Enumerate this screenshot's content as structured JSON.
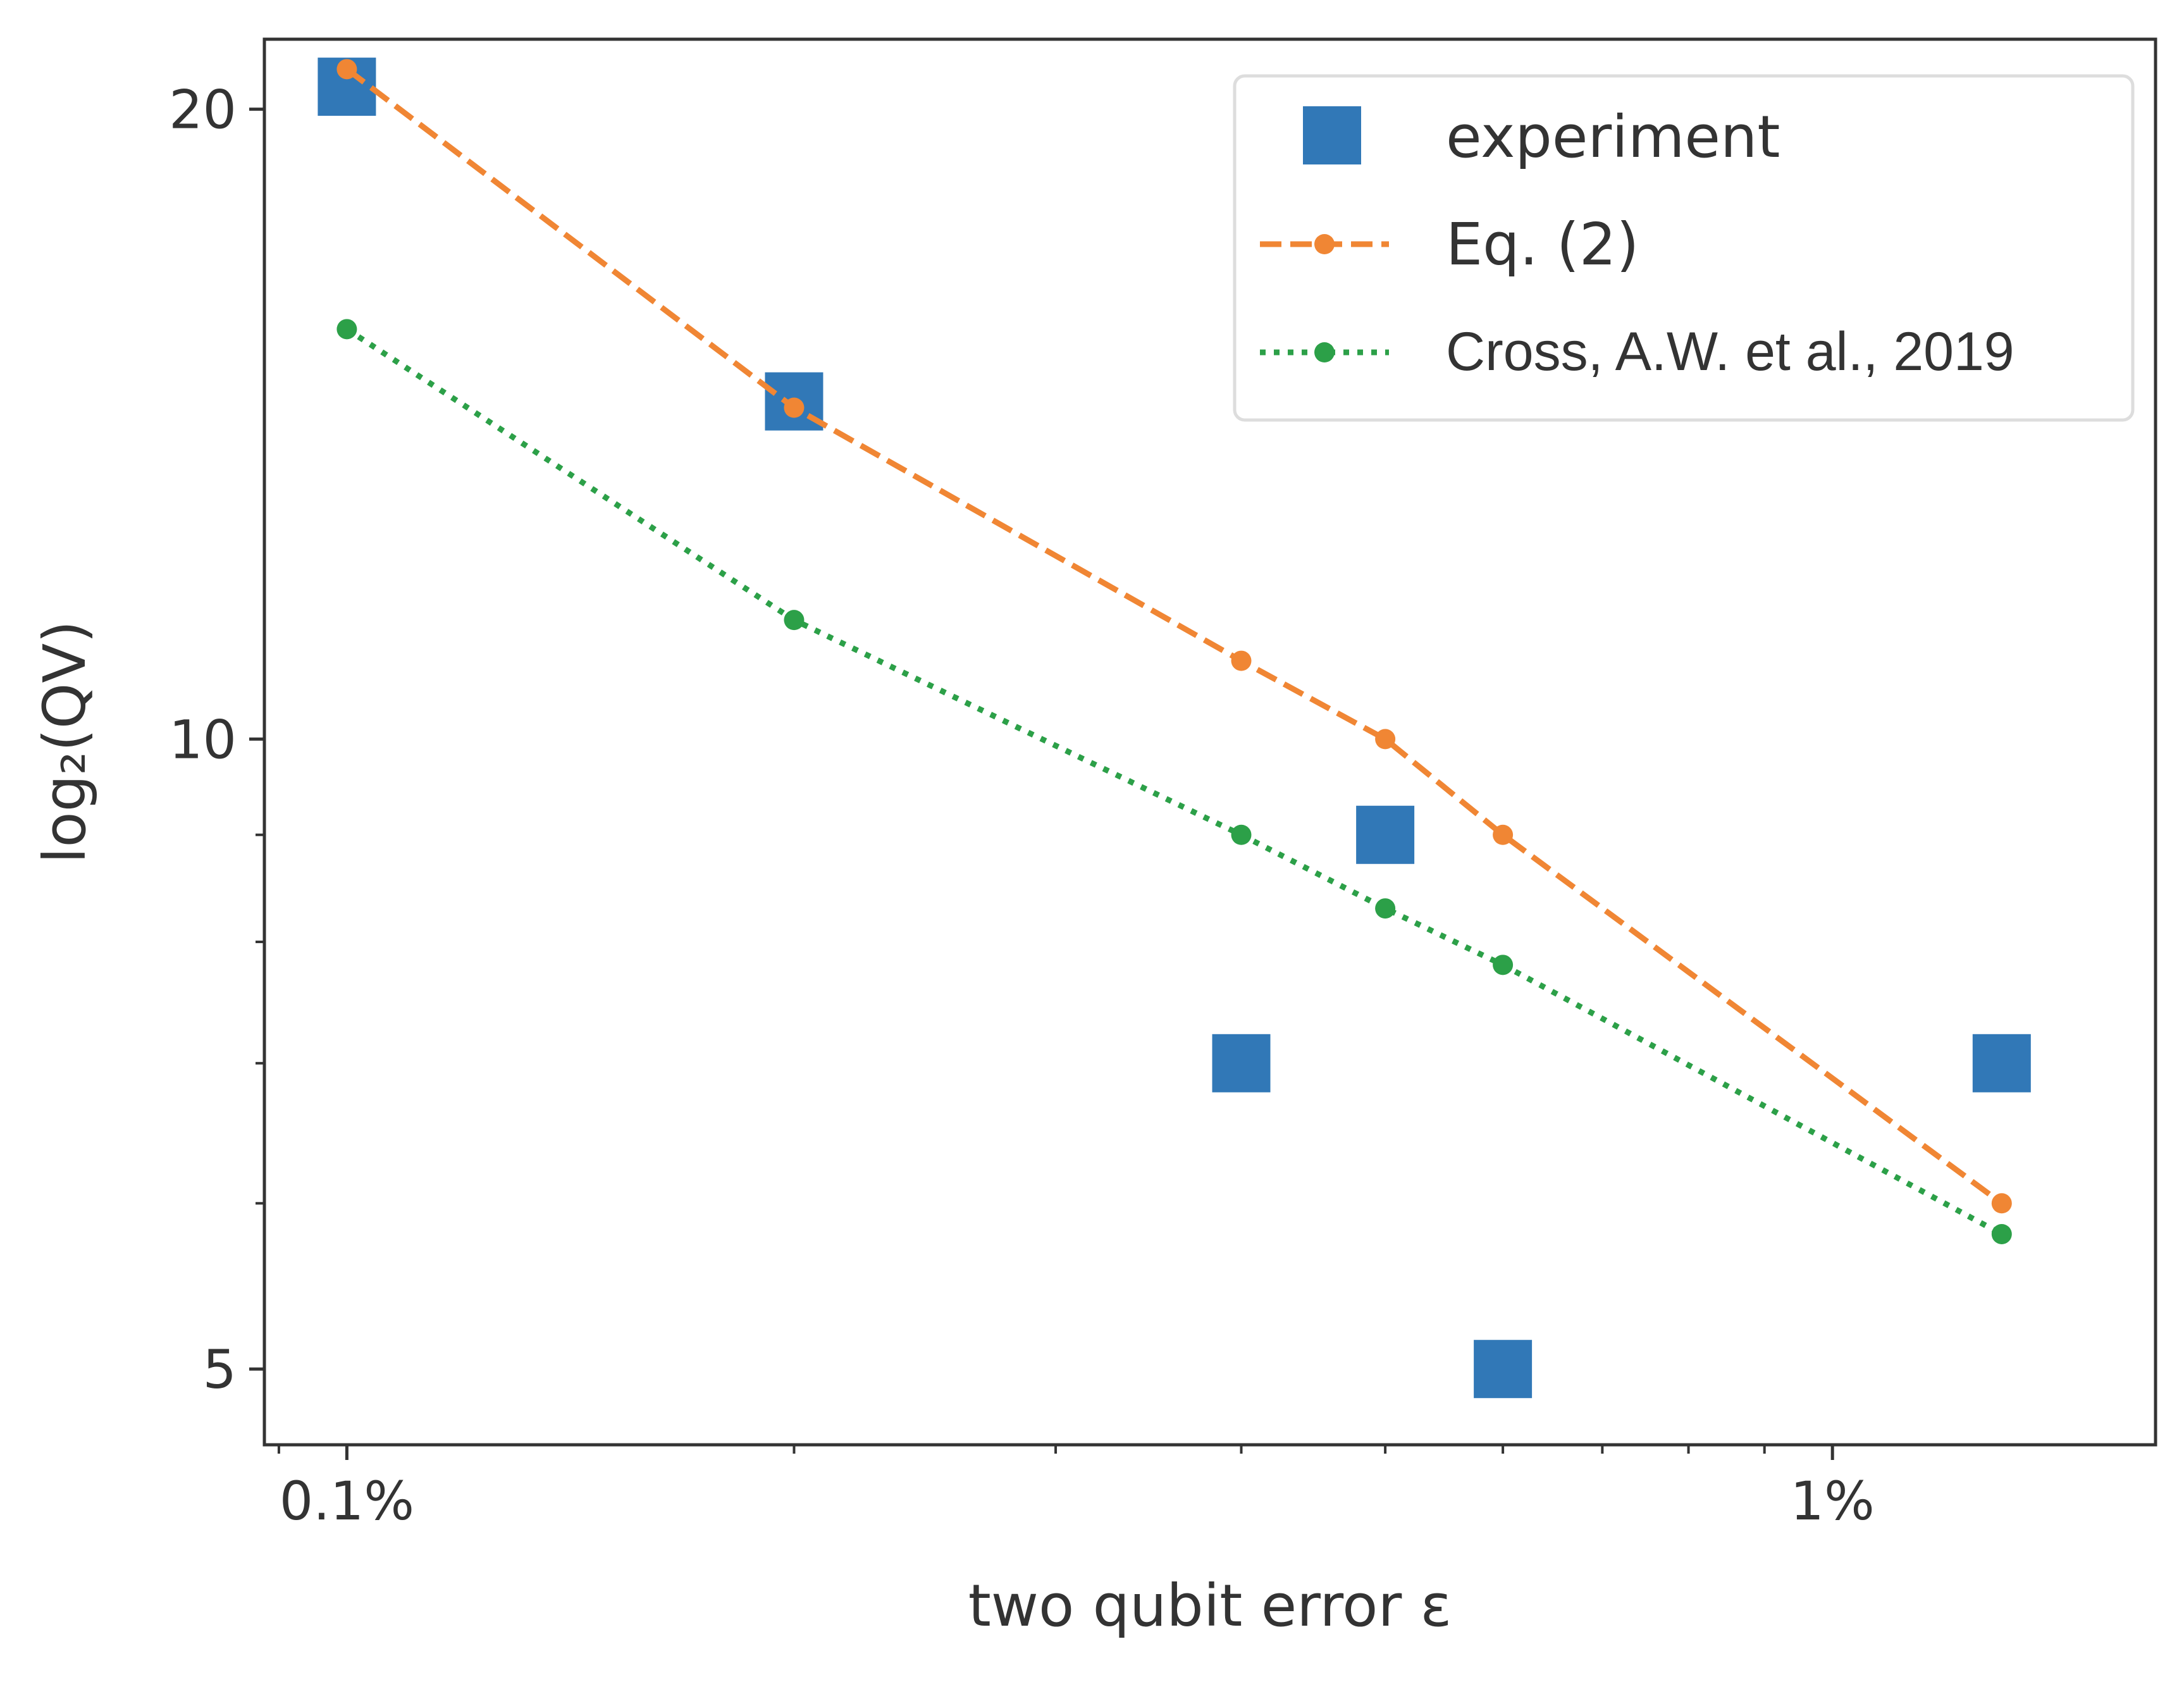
{
  "chart_data": {
    "type": "scatter",
    "title": "",
    "xlabel": "two qubit error ε",
    "ylabel": "log₂(QV)",
    "xscale": "log",
    "yscale": "log",
    "xlim": [
      0.088,
      1.65
    ],
    "ylim": [
      4.6,
      21.6
    ],
    "x_ticks": [
      {
        "value": 0.1,
        "label": "0.1%"
      },
      {
        "value": 1,
        "label": "1%"
      }
    ],
    "y_ticks": [
      {
        "value": 5,
        "label": "5"
      },
      {
        "value": 10,
        "label": "10"
      },
      {
        "value": 20,
        "label": "20"
      }
    ],
    "y_minor_ticks": [
      6,
      7,
      8,
      9
    ],
    "x_minor_ticks": [
      0.09,
      0.2,
      0.3,
      0.4,
      0.5,
      0.6,
      0.7,
      0.8,
      0.9
    ],
    "legend_position": "top-right",
    "grid": false,
    "series": [
      {
        "name": "experiment",
        "style": "square-marker",
        "color": "#3178b7",
        "x": [
          0.1,
          0.2,
          0.4,
          0.5,
          0.6,
          1.3
        ],
        "y": [
          20.5,
          14.5,
          7,
          9,
          5,
          7
        ]
      },
      {
        "name": "Eq. (2)",
        "style": "dashed-line-dot",
        "color": "#f08634",
        "x": [
          0.1,
          0.2,
          0.4,
          0.5,
          0.6,
          1.3
        ],
        "y": [
          20.9,
          14.4,
          10.9,
          10.0,
          9.0,
          6.0
        ]
      },
      {
        "name": "Cross, A.W. et al., 2019",
        "style": "dotted-line-dot",
        "color": "#2ca048",
        "x": [
          0.1,
          0.2,
          0.4,
          0.5,
          0.6,
          1.3
        ],
        "y": [
          15.7,
          11.4,
          9.0,
          8.3,
          7.8,
          5.8
        ]
      }
    ]
  }
}
